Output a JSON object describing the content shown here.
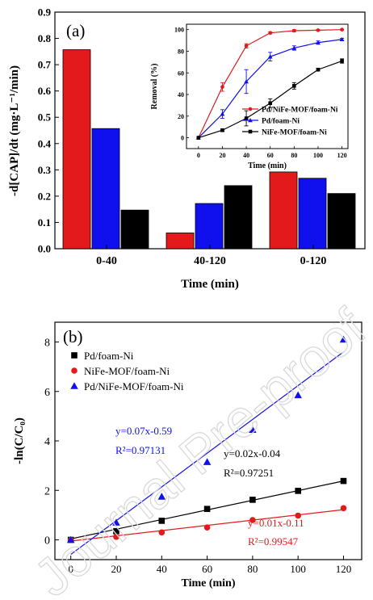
{
  "watermark": "Journal Pre-proof",
  "colors": {
    "red": "#e31a1c",
    "blue": "#1010ee",
    "black": "#000000"
  },
  "chart_data": [
    {
      "type": "bar",
      "panel_label": "(a)",
      "xlabel": "Time (min)",
      "ylabel": "-d[CAP]/dt (mg·L⁻¹/min)",
      "ylim": [
        0.0,
        0.9
      ],
      "yticks": [
        "0.0",
        "0.1",
        "0.2",
        "0.3",
        "0.4",
        "0.5",
        "0.6",
        "0.7",
        "0.8",
        "0.9"
      ],
      "categories": [
        "0-40",
        "40-120",
        "0-120"
      ],
      "series": [
        {
          "color": "#e31a1c",
          "values": [
            0.757,
            0.06,
            0.292
          ]
        },
        {
          "color": "#1010ee",
          "values": [
            0.457,
            0.172,
            0.268
          ]
        },
        {
          "color": "#000000",
          "values": [
            0.147,
            0.24,
            0.21
          ]
        }
      ]
    },
    {
      "type": "line",
      "panel": "inset",
      "xlabel": "Time (min)",
      "ylabel": "Removal (%)",
      "xlim": [
        -10,
        125
      ],
      "ylim": [
        -10,
        105
      ],
      "xticks": [
        "0",
        "20",
        "40",
        "60",
        "80",
        "100",
        "120"
      ],
      "yticks": [
        "0",
        "20",
        "40",
        "60",
        "80",
        "100"
      ],
      "legend_position": "bottom-right",
      "x": [
        0,
        20,
        40,
        60,
        80,
        100,
        120
      ],
      "series": [
        {
          "name": "Pd/NiFe-MOF/foam-Ni",
          "color": "#e31a1c",
          "marker": "circle",
          "values": [
            0,
            47,
            85,
            97,
            99,
            99.5,
            100
          ],
          "errors": [
            0,
            4,
            2,
            1,
            1,
            0.5,
            0.5
          ]
        },
        {
          "name": "Pd/foam-Ni",
          "color": "#1010ee",
          "marker": "triangle",
          "values": [
            0,
            22,
            52,
            75,
            83,
            88,
            91
          ],
          "errors": [
            0,
            4,
            11,
            4,
            2,
            1.5,
            1
          ]
        },
        {
          "name": "NiFe-MOF/foam-Ni",
          "color": "#000000",
          "marker": "square",
          "values": [
            0,
            7,
            18,
            32,
            48,
            63,
            71
          ],
          "errors": [
            0,
            1,
            7,
            4,
            3,
            1,
            2
          ]
        }
      ]
    },
    {
      "type": "scatter",
      "panel_label": "(b)",
      "xlabel": "Time (min)",
      "ylabel": "-ln(C/C₀)",
      "xlim": [
        -7,
        128
      ],
      "ylim": [
        -0.8,
        8.8
      ],
      "xticks": [
        "0",
        "20",
        "40",
        "60",
        "80",
        "100",
        "120"
      ],
      "yticks": [
        "0",
        "2",
        "4",
        "6",
        "8"
      ],
      "legend_position": "top-left",
      "x": [
        0,
        20,
        40,
        60,
        80,
        100,
        120
      ],
      "series": [
        {
          "name": "Pd/foam-Ni",
          "color": "#000000",
          "marker": "square",
          "values": [
            0,
            0.35,
            0.77,
            1.25,
            1.62,
            1.98,
            2.38
          ],
          "fit": [
            0.02,
            -0.04
          ],
          "fit_label": "y=0.02x-0.04",
          "r2_label": "R²=0.97251"
        },
        {
          "name": "NiFe-MOF/foam-Ni",
          "color": "#e31a1c",
          "marker": "circle",
          "values": [
            0,
            0.12,
            0.3,
            0.5,
            0.8,
            0.98,
            1.28
          ],
          "fit": [
            0.01,
            -0.11
          ],
          "fit_label": "y=0.01x-0.11",
          "r2_label": "R²=0.99547"
        },
        {
          "name": "Pd/NiFe-MOF/foam-Ni",
          "color": "#1010ee",
          "marker": "triangle",
          "values": [
            0,
            0.7,
            1.75,
            3.15,
            4.45,
            5.85,
            8.1
          ],
          "fit": [
            0.07,
            -0.59
          ],
          "fit_label": "y=0.07x-0.59",
          "r2_label": "R²=0.97131"
        }
      ]
    }
  ]
}
